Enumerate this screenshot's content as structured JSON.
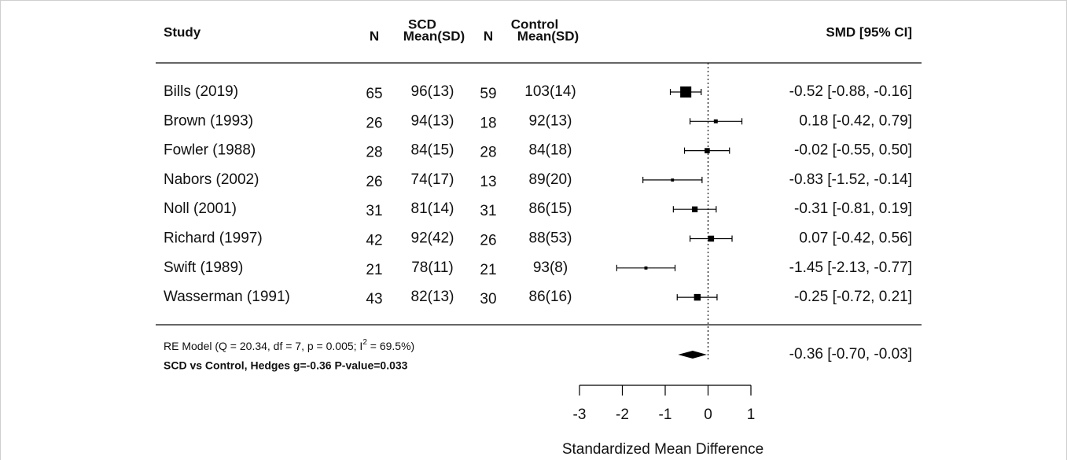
{
  "chart_data": {
    "type": "forest",
    "headers": {
      "study": "Study",
      "scd": "SCD",
      "control": "Control",
      "scd_n": "N",
      "scd_mean": "Mean(SD)",
      "control_n": "N",
      "control_mean": "Mean(SD)",
      "effect": "SMD [95% CI]"
    },
    "studies": [
      {
        "name": "Bills (2019)",
        "scd_n": 65,
        "scd_mean_sd": "96(13)",
        "control_n": 59,
        "control_mean_sd": "103(14)",
        "smd": -0.52,
        "ci": [
          -0.88,
          -0.16
        ],
        "label": "-0.52 [-0.88, -0.16]"
      },
      {
        "name": "Brown (1993)",
        "scd_n": 26,
        "scd_mean_sd": "94(13)",
        "control_n": 18,
        "control_mean_sd": "92(13)",
        "smd": 0.18,
        "ci": [
          -0.42,
          0.79
        ],
        "label": "0.18 [-0.42,  0.79]"
      },
      {
        "name": "Fowler (1988)",
        "scd_n": 28,
        "scd_mean_sd": "84(15)",
        "control_n": 28,
        "control_mean_sd": "84(18)",
        "smd": -0.02,
        "ci": [
          -0.55,
          0.5
        ],
        "label": "-0.02 [-0.55,  0.50]"
      },
      {
        "name": "Nabors (2002)",
        "scd_n": 26,
        "scd_mean_sd": "74(17)",
        "control_n": 13,
        "control_mean_sd": "89(20)",
        "smd": -0.83,
        "ci": [
          -1.52,
          -0.14
        ],
        "label": "-0.83 [-1.52, -0.14]"
      },
      {
        "name": "Noll (2001)",
        "scd_n": 31,
        "scd_mean_sd": "81(14)",
        "control_n": 31,
        "control_mean_sd": "86(15)",
        "smd": -0.31,
        "ci": [
          -0.81,
          0.19
        ],
        "label": "-0.31 [-0.81,  0.19]"
      },
      {
        "name": "Richard (1997)",
        "scd_n": 42,
        "scd_mean_sd": "92(42)",
        "control_n": 26,
        "control_mean_sd": "88(53)",
        "smd": 0.07,
        "ci": [
          -0.42,
          0.56
        ],
        "label": "0.07 [-0.42,  0.56]"
      },
      {
        "name": "Swift (1989)",
        "scd_n": 21,
        "scd_mean_sd": "78(11)",
        "control_n": 21,
        "control_mean_sd": "93(8)",
        "smd": -1.45,
        "ci": [
          -2.13,
          -0.77
        ],
        "label": "-1.45 [-2.13, -0.77]"
      },
      {
        "name": "Wasserman (1991)",
        "scd_n": 43,
        "scd_mean_sd": "82(13)",
        "control_n": 30,
        "control_mean_sd": "86(16)",
        "smd": -0.25,
        "ci": [
          -0.72,
          0.21
        ],
        "label": "-0.25 [-0.72,  0.21]"
      }
    ],
    "summary": {
      "model_text": "RE Model (Q = 20.34, df = 7, p = 0.005; I",
      "model_sup": "2",
      "model_text_end": " = 69.5%)",
      "note": "SCD vs Control, Hedges g=-0.36 P-value=0.033",
      "smd": -0.36,
      "ci": [
        -0.7,
        -0.03
      ],
      "label": "-0.36 [-0.70, -0.03]"
    },
    "xlim": [
      -3,
      1
    ],
    "xticks": [
      -3,
      -2,
      -1,
      0,
      1
    ],
    "x_label": "Standardized Mean Difference",
    "reference_line": 0,
    "color": "#000000"
  }
}
